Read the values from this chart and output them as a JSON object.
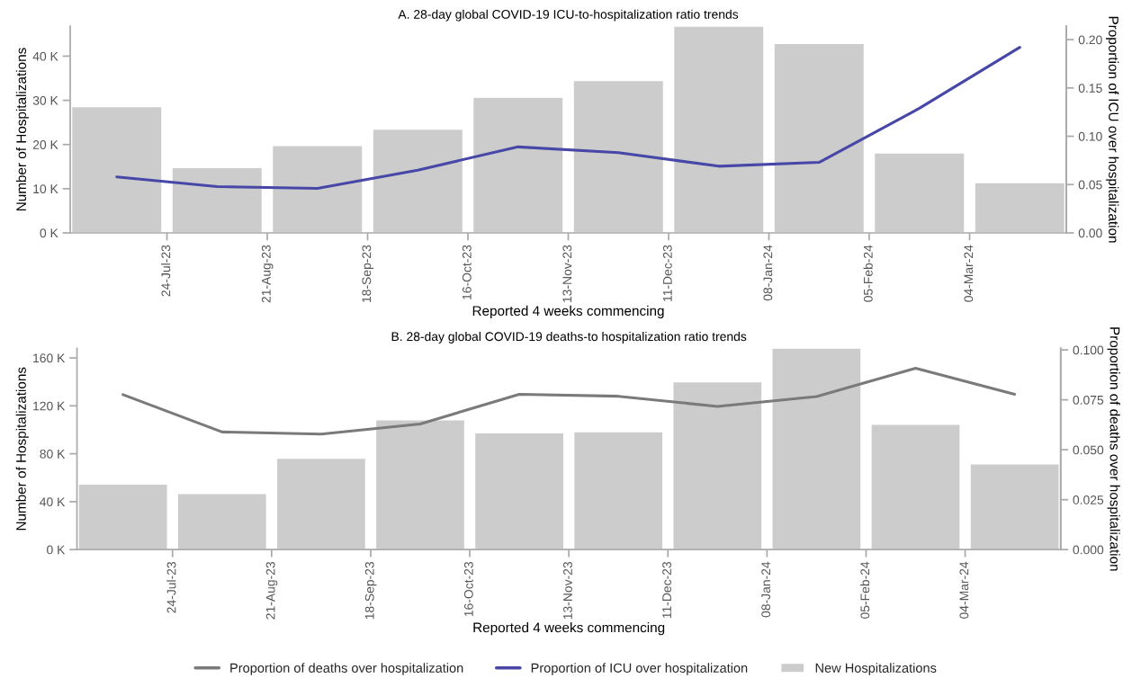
{
  "chart_data": [
    {
      "type": "bar",
      "title": "A. 28-day global COVID-19 ICU-to-hospitalization ratio trends",
      "xlabel": "Reported 4 weeks commencing",
      "ylabel": "Number of Hospitalizations",
      "y2label": "Proportion of ICU over hospitalization",
      "x": [
        "2023-07-10",
        "2023-08-07",
        "2023-09-04",
        "2023-10-02",
        "2023-10-30",
        "2023-11-27",
        "2023-12-25",
        "2024-01-22",
        "2024-02-19",
        "2024-03-18"
      ],
      "series": [
        {
          "name": "New Hospitalizations",
          "color": "#cccccc",
          "values": [
            28.6,
            14.8,
            19.8,
            23.5,
            30.7,
            34.5,
            46.8,
            42.9,
            18.1,
            11.4
          ]
        },
        {
          "name": "Proportion of ICU over hospitalization",
          "type": "line",
          "axis": "y2",
          "color": "#4747a8",
          "values": [
            0.058,
            0.048,
            0.046,
            0.065,
            0.089,
            0.083,
            0.069,
            0.073,
            0.129,
            0.192
          ]
        }
      ],
      "xlim": [
        "2023-06-27",
        "2024-03-31"
      ],
      "xticks": [
        {
          "value": "2023-07-24",
          "label": "24-Jul-23"
        },
        {
          "value": "2023-08-21",
          "label": "21-Aug-23"
        },
        {
          "value": "2023-09-18",
          "label": "18-Sep-23"
        },
        {
          "value": "2023-10-16",
          "label": "16-Oct-23"
        },
        {
          "value": "2023-11-13",
          "label": "13-Nov-23"
        },
        {
          "value": "2023-12-11",
          "label": "11-Dec-23"
        },
        {
          "value": "2024-01-08",
          "label": "08-Jan-24"
        },
        {
          "value": "2024-02-05",
          "label": "05-Feb-24"
        },
        {
          "value": "2024-03-04",
          "label": "04-Mar-24"
        }
      ],
      "ylim": [
        0,
        46.8
      ],
      "yticks": [
        {
          "value": 0,
          "label": "0 K"
        },
        {
          "value": 10,
          "label": "10 K"
        },
        {
          "value": 20,
          "label": "20 K"
        },
        {
          "value": 30,
          "label": "30 K"
        },
        {
          "value": 40,
          "label": "40 K"
        }
      ],
      "y2lim": [
        0,
        0.214
      ],
      "y2ticks": [
        {
          "value": 0,
          "label": "0.00"
        },
        {
          "value": 0.05,
          "label": "0.05"
        },
        {
          "value": 0.1,
          "label": "0.10"
        },
        {
          "value": 0.15,
          "label": "0.15"
        },
        {
          "value": 0.2,
          "label": "0.20"
        }
      ],
      "grid": false,
      "legend": "bottom"
    },
    {
      "type": "bar",
      "title": "B. 28-day global COVID-19 deaths-to hospitalization ratio trends",
      "xlabel": "Reported 4 weeks commencing",
      "ylabel": "Number of Hospitalizations",
      "y2label": "Proportion of deaths over hospitalization",
      "x": [
        "2023-07-10",
        "2023-08-07",
        "2023-09-04",
        "2023-10-02",
        "2023-10-30",
        "2023-11-27",
        "2023-12-25",
        "2024-01-22",
        "2024-02-19",
        "2024-03-18"
      ],
      "series": [
        {
          "name": "New Hospitalizations",
          "color": "#cccccc",
          "values": [
            54.8,
            46.9,
            76.2,
            108.4,
            97.5,
            98.4,
            140,
            168,
            104.6,
            71.5
          ]
        },
        {
          "name": "Proportion of deaths over hospitalization",
          "type": "line",
          "axis": "y2",
          "color": "#7a7a7a",
          "values": [
            0.0776,
            0.0589,
            0.0578,
            0.0629,
            0.0778,
            0.0768,
            0.0717,
            0.0766,
            0.0908,
            0.0778
          ]
        }
      ],
      "xlim": [
        "2023-06-27",
        "2024-03-31"
      ],
      "xticks": [
        {
          "value": "2023-07-24",
          "label": "24-Jul-23"
        },
        {
          "value": "2023-08-21",
          "label": "21-Aug-23"
        },
        {
          "value": "2023-09-18",
          "label": "18-Sep-23"
        },
        {
          "value": "2023-10-16",
          "label": "16-Oct-23"
        },
        {
          "value": "2023-11-13",
          "label": "13-Nov-23"
        },
        {
          "value": "2023-12-11",
          "label": "11-Dec-23"
        },
        {
          "value": "2024-01-08",
          "label": "08-Jan-24"
        },
        {
          "value": "2024-02-05",
          "label": "05-Feb-24"
        },
        {
          "value": "2024-03-04",
          "label": "04-Mar-24"
        }
      ],
      "ylim": [
        0,
        168
      ],
      "yticks": [
        {
          "value": 0,
          "label": "0 K"
        },
        {
          "value": 40,
          "label": "40 K"
        },
        {
          "value": 80,
          "label": "80 K"
        },
        {
          "value": 120,
          "label": "120 K"
        },
        {
          "value": 160,
          "label": "160 K"
        }
      ],
      "y2lim": [
        0,
        0.1008
      ],
      "y2ticks": [
        {
          "value": 0,
          "label": "0.000"
        },
        {
          "value": 0.025,
          "label": "0.025"
        },
        {
          "value": 0.05,
          "label": "0.050"
        },
        {
          "value": 0.075,
          "label": "0.075"
        },
        {
          "value": 0.1,
          "label": "0.100"
        }
      ],
      "grid": false,
      "legend": "bottom"
    }
  ]
}
